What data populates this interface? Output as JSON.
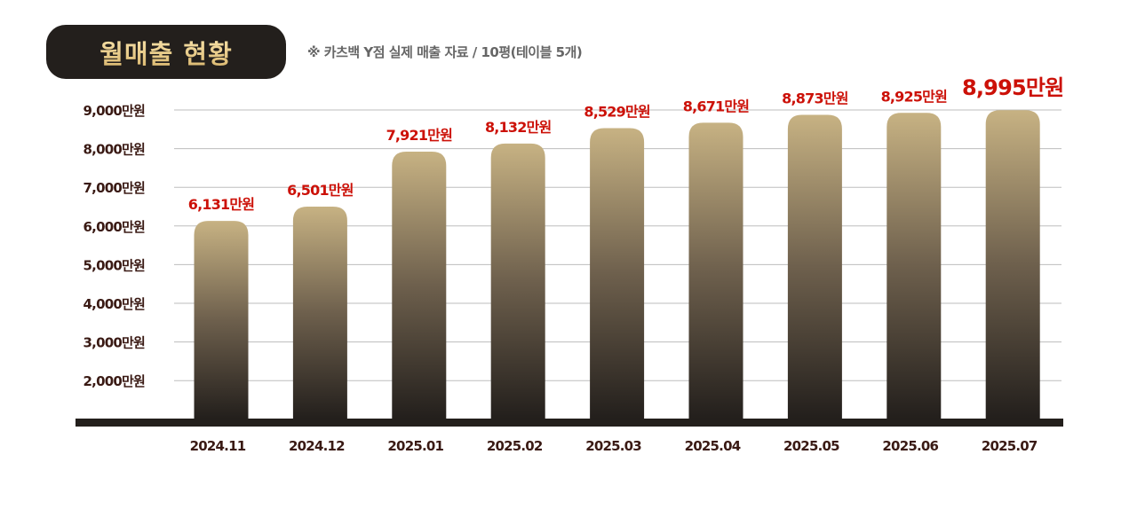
{
  "header": {
    "title": "월매출 현황",
    "note": "※ 카츠백 Y점 실제 매출 자료 / 10평(테이블 5개)"
  },
  "colors": {
    "bar_top": "#c7b283",
    "bar_bottom": "#231f1c",
    "value_label": "#cc1108",
    "axis_label": "#3a1a14",
    "grid": "#bdbdbd",
    "baseline": "#231f1c"
  },
  "chart_data": {
    "type": "bar",
    "title": "월매출 현황",
    "categories": [
      "2024.11",
      "2024.12",
      "2025.01",
      "2025.02",
      "2025.03",
      "2025.04",
      "2025.05",
      "2025.06",
      "2025.07"
    ],
    "values": [
      6131,
      6501,
      7921,
      8132,
      8529,
      8671,
      8873,
      8925,
      8995
    ],
    "data_labels": [
      "6,131만원",
      "6,501만원",
      "7,921만원",
      "8,132만원",
      "8,529만원",
      "8,671만원",
      "8,873만원",
      "8,925만원",
      "8,995만원"
    ],
    "unit": "만원",
    "yticks": [
      2000,
      3000,
      4000,
      5000,
      6000,
      7000,
      8000,
      9000
    ],
    "ytick_labels": [
      "2,000만원",
      "3,000만원",
      "4,000만원",
      "5,000만원",
      "6,000만원",
      "7,000만원",
      "8,000만원",
      "9,000만원"
    ],
    "ylim": [
      0,
      9000
    ],
    "grid": true,
    "highlight_last": true
  }
}
